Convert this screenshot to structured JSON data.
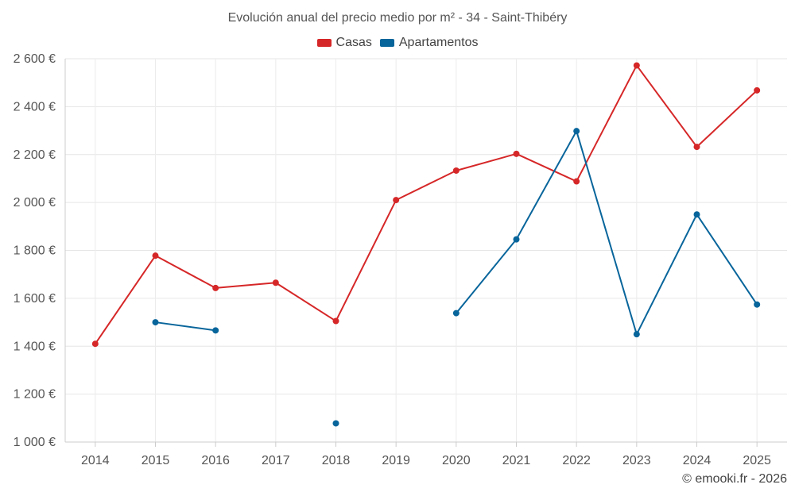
{
  "chart_data": {
    "type": "line",
    "title": "Evolución anual del precio medio por m² - 34 - Saint-Thibéry",
    "xlabel": "",
    "ylabel": "",
    "categories": [
      "2014",
      "2015",
      "2016",
      "2017",
      "2018",
      "2019",
      "2020",
      "2021",
      "2022",
      "2023",
      "2024",
      "2025"
    ],
    "ylim": [
      1000,
      2600
    ],
    "yticks": [
      1000,
      1200,
      1400,
      1600,
      1800,
      2000,
      2200,
      2400,
      2600
    ],
    "ytick_labels": [
      "1 000 €",
      "1 200 €",
      "1 400 €",
      "1 600 €",
      "1 800 €",
      "2 000 €",
      "2 200 €",
      "2 400 €",
      "2 600 €"
    ],
    "grid": true,
    "legend_position": "top-center",
    "series": [
      {
        "name": "Casas",
        "color": "#d62728",
        "values": [
          1410,
          1778,
          1643,
          1665,
          1505,
          2010,
          2133,
          2203,
          2088,
          2572,
          2232,
          2468
        ]
      },
      {
        "name": "Apartamentos",
        "color": "#08659b",
        "values": [
          null,
          1500,
          1466,
          null,
          1078,
          null,
          1538,
          1846,
          2298,
          1450,
          1950,
          1574
        ]
      }
    ]
  },
  "credit": "© emooki.fr - 2026"
}
